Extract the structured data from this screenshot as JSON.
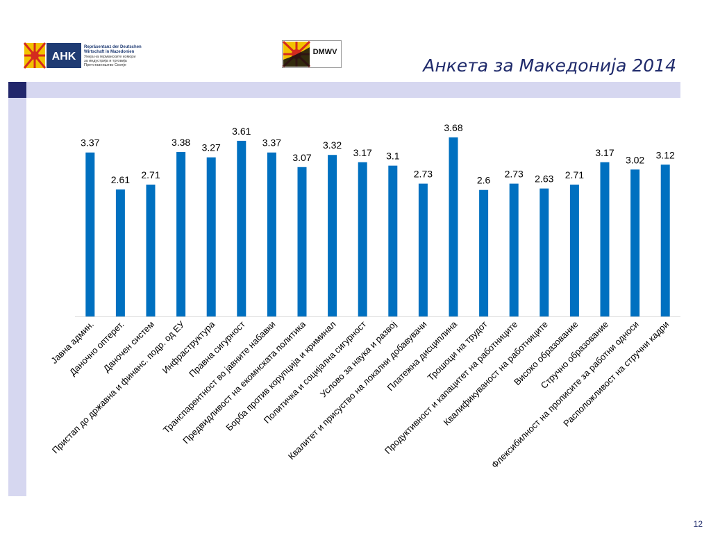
{
  "slide": {
    "title": "Анкета за Македонија 2014",
    "page_number": "12"
  },
  "logos": {
    "ahk": {
      "mark": "AHK",
      "text_lines": [
        "Repräsentanz der Deutschen",
        "Wirtschaft in Mazedonien",
        "Унија на германските комори",
        "за индустрија и трговија",
        "Претставништво Скопје"
      ]
    },
    "dmwv": {
      "mark": "DMWV"
    }
  },
  "colors": {
    "bar": "#0070c0",
    "title": "#1f2a6b",
    "band": "#d6d7f0",
    "band_square": "#22276b",
    "label": "#000000"
  },
  "chart_data": {
    "type": "bar",
    "title": "",
    "xlabel": "",
    "ylabel": "",
    "ylim": [
      0,
      4
    ],
    "grid": false,
    "legend": "none",
    "categories": [
      "Јавна админ.",
      "Даночно оптерет.",
      "Даночен систем",
      "Пристап до државна и финанс. подр. од ЕУ",
      "Инфраструктура",
      "Правна сигурност",
      "Транспарентност во јавните набавки",
      "Предвидливост на екомнската политика",
      "Борба против корупција и криминал",
      "Политичка и социјална сигурност",
      "Услово за наука и развој",
      "Квалитет и присуство на локални добавувачи",
      "Платежна дисциплина",
      "Трошоци на трудот",
      "Продуктивност и капацитет на работниците",
      "Квалификуваност на работниците",
      "Високо образование",
      "Стручно образование",
      "Флексибилност на прописите за работни односи",
      "Расположливост на стручни кадри"
    ],
    "values": [
      3.37,
      2.61,
      2.71,
      3.38,
      3.27,
      3.61,
      3.37,
      3.07,
      3.32,
      3.17,
      3.1,
      2.73,
      3.68,
      2.6,
      2.73,
      2.63,
      2.71,
      3.17,
      3.02,
      3.12
    ],
    "data_labels": [
      "3.37",
      "2.61",
      "2.71",
      "3.38",
      "3.27",
      "3.61",
      "3.37",
      "3.07",
      "3.32",
      "3.17",
      "3.1",
      "2.73",
      "3.68",
      "2.6",
      "2.73",
      "2.63",
      "2.71",
      "3.17",
      "3.02",
      "3.12"
    ]
  }
}
